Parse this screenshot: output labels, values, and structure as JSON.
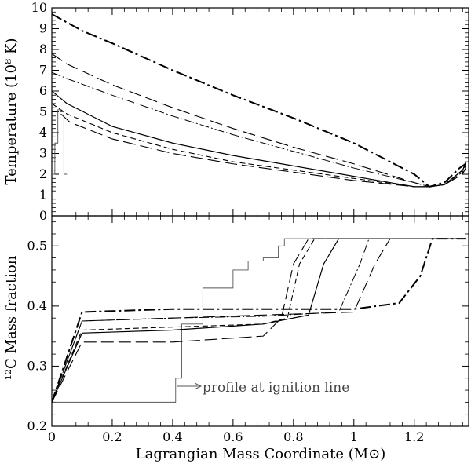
{
  "chart_data": [
    {
      "type": "line",
      "panel": "top",
      "ylabel": "Temperature (10⁸ K)",
      "xlim": [
        0,
        1.38
      ],
      "ylim": [
        0,
        10
      ],
      "yticks": [
        "0",
        "1",
        "2",
        "3",
        "4",
        "5",
        "6",
        "7",
        "8",
        "9",
        "10"
      ],
      "grid": false,
      "series": [
        {
          "style": "dash-dot-heavy",
          "x": [
            0,
            0.1,
            0.2,
            0.4,
            0.6,
            0.8,
            1.0,
            1.2,
            1.25,
            1.3,
            1.35,
            1.37
          ],
          "y": [
            9.7,
            8.9,
            8.3,
            7.0,
            5.8,
            4.7,
            3.5,
            2.0,
            1.4,
            1.6,
            2.3,
            2.5
          ]
        },
        {
          "style": "long-dash",
          "x": [
            0,
            0.05,
            0.2,
            0.4,
            0.6,
            0.8,
            1.0,
            1.2,
            1.25,
            1.3,
            1.36,
            1.37
          ],
          "y": [
            7.8,
            7.3,
            6.3,
            5.2,
            4.2,
            3.3,
            2.5,
            1.6,
            1.4,
            1.5,
            2.2,
            2.5
          ]
        },
        {
          "style": "dash-dot-thin",
          "x": [
            0,
            0.05,
            0.2,
            0.4,
            0.6,
            0.8,
            1.0,
            1.2,
            1.25,
            1.3,
            1.36,
            1.37
          ],
          "y": [
            6.9,
            6.6,
            5.8,
            4.8,
            3.9,
            3.1,
            2.3,
            1.6,
            1.4,
            1.5,
            2.2,
            2.6
          ]
        },
        {
          "style": "solid",
          "x": [
            0,
            0.05,
            0.2,
            0.4,
            0.6,
            0.8,
            1.0,
            1.2,
            1.25,
            1.3,
            1.36,
            1.37
          ],
          "y": [
            6.0,
            5.4,
            4.3,
            3.5,
            2.9,
            2.4,
            1.9,
            1.4,
            1.4,
            1.5,
            2.2,
            2.5
          ]
        },
        {
          "style": "dashed",
          "x": [
            0,
            0.05,
            0.2,
            0.4,
            0.6,
            0.8,
            1.0,
            1.2,
            1.25,
            1.3,
            1.36,
            1.37
          ],
          "y": [
            5.4,
            4.9,
            4.0,
            3.2,
            2.6,
            2.2,
            1.8,
            1.4,
            1.4,
            1.5,
            2.1,
            2.4
          ]
        },
        {
          "style": "long-dash",
          "x": [
            0.03,
            0.06,
            0.2,
            0.4,
            0.6,
            0.8,
            1.0,
            1.2,
            1.25,
            1.3,
            1.36,
            1.37
          ],
          "y": [
            4.9,
            4.5,
            3.7,
            3.0,
            2.5,
            2.1,
            1.7,
            1.4,
            1.4,
            1.5,
            2.0,
            2.3
          ]
        },
        {
          "style": "thin-step",
          "x": [
            0,
            0.005,
            0.01,
            0.02,
            0.03,
            0.04,
            0.05
          ],
          "y": [
            2.0,
            2.0,
            3.5,
            5.1,
            5.0,
            2.0,
            2.0
          ]
        }
      ]
    },
    {
      "type": "line",
      "panel": "bottom",
      "xlabel": "Lagrangian Mass Coordinate (M⊙)",
      "ylabel": "¹²C Mass fraction",
      "xlim": [
        0,
        1.38
      ],
      "ylim": [
        0.2,
        0.55
      ],
      "xticks": [
        "0",
        "0.2",
        "0.4",
        "0.6",
        "0.8",
        "1",
        "1.2"
      ],
      "yticks": [
        "0.2",
        "0.3",
        "0.4",
        "0.5"
      ],
      "grid": false,
      "annotation": "profile at ignition line",
      "series": [
        {
          "style": "thin-step",
          "x": [
            0,
            0.39,
            0.41,
            0.43,
            0.5,
            0.6,
            0.65,
            0.7,
            0.75,
            0.77,
            1.37
          ],
          "y": [
            0.24,
            0.24,
            0.28,
            0.37,
            0.43,
            0.46,
            0.475,
            0.48,
            0.5,
            0.512,
            0.512
          ]
        },
        {
          "style": "long-dash",
          "x": [
            0,
            0.1,
            0.4,
            0.7,
            0.76,
            0.8,
            0.85,
            1.37
          ],
          "y": [
            0.24,
            0.34,
            0.34,
            0.35,
            0.38,
            0.47,
            0.512,
            0.512
          ]
        },
        {
          "style": "dashed",
          "x": [
            0,
            0.1,
            0.4,
            0.7,
            0.78,
            0.82,
            0.87,
            1.37
          ],
          "y": [
            0.24,
            0.36,
            0.365,
            0.37,
            0.38,
            0.47,
            0.512,
            0.512
          ]
        },
        {
          "style": "solid",
          "x": [
            0,
            0.1,
            0.4,
            0.7,
            0.85,
            0.9,
            0.95,
            1.37
          ],
          "y": [
            0.24,
            0.355,
            0.36,
            0.37,
            0.385,
            0.47,
            0.512,
            0.512
          ]
        },
        {
          "style": "dash-dot-thin",
          "x": [
            0,
            0.1,
            0.4,
            0.7,
            0.95,
            1.02,
            1.05,
            1.37
          ],
          "y": [
            0.24,
            0.375,
            0.38,
            0.383,
            0.39,
            0.47,
            0.512,
            0.512
          ]
        },
        {
          "style": "long-dash",
          "x": [
            0,
            0.1,
            0.4,
            0.7,
            1.0,
            1.07,
            1.12,
            1.37
          ],
          "y": [
            0.24,
            0.375,
            0.38,
            0.385,
            0.39,
            0.47,
            0.512,
            0.512
          ]
        },
        {
          "style": "dash-dot-heavy",
          "x": [
            0,
            0.1,
            0.4,
            0.7,
            1.0,
            1.15,
            1.22,
            1.26,
            1.37
          ],
          "y": [
            0.24,
            0.39,
            0.395,
            0.395,
            0.395,
            0.405,
            0.45,
            0.512,
            0.512
          ]
        }
      ]
    }
  ]
}
